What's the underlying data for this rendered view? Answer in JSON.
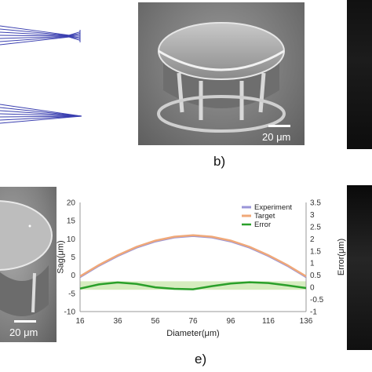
{
  "panel_b": {
    "letter": "b)",
    "scale_label": "20 μm"
  },
  "panel_d": {
    "scale_label": "20 μm"
  },
  "panel_e": {
    "letter": "e)"
  },
  "colors": {
    "experiment": "#9a95d8",
    "target": "#f0a878",
    "error": "#2aa02a",
    "band": "#d6ecbf",
    "rays": "#3a3fb0"
  },
  "chart_data": {
    "type": "line",
    "title": "",
    "xlabel": "Diameter(μm)",
    "ylabel": "Sag(μm)",
    "y2label": "Error(μm)",
    "xlim": [
      16,
      136
    ],
    "ylim": [
      -10,
      20
    ],
    "y2lim": [
      -1,
      3.5
    ],
    "x_ticks": [
      "16",
      "36",
      "56",
      "76",
      "96",
      "116",
      "136"
    ],
    "y_ticks": [
      "-10",
      "-5",
      "0",
      "5",
      "10",
      "15",
      "20"
    ],
    "y2_ticks": [
      "-1",
      "-0.5",
      "0",
      "0.5",
      "1",
      "1.5",
      "2",
      "2.5",
      "3",
      "3.5"
    ],
    "legend_position": "top-right",
    "x": [
      16,
      26,
      36,
      46,
      56,
      66,
      76,
      86,
      96,
      106,
      116,
      126,
      136
    ],
    "series": [
      {
        "name": "Experiment",
        "axis": "left",
        "values": [
          -0.5,
          2.6,
          5.3,
          7.6,
          9.3,
          10.4,
          10.8,
          10.4,
          9.3,
          7.6,
          5.3,
          2.6,
          -0.5
        ]
      },
      {
        "name": "Target",
        "axis": "left",
        "values": [
          -0.3,
          2.8,
          5.5,
          7.8,
          9.5,
          10.6,
          11.0,
          10.6,
          9.5,
          7.8,
          5.5,
          2.8,
          -0.3
        ]
      },
      {
        "name": "Error",
        "axis": "right",
        "values": [
          -0.05,
          0.12,
          0.2,
          0.14,
          0.0,
          -0.06,
          -0.08,
          0.05,
          0.16,
          0.21,
          0.18,
          0.08,
          -0.03
        ]
      }
    ],
    "band_y2": [
      -0.1,
      0.25
    ]
  }
}
